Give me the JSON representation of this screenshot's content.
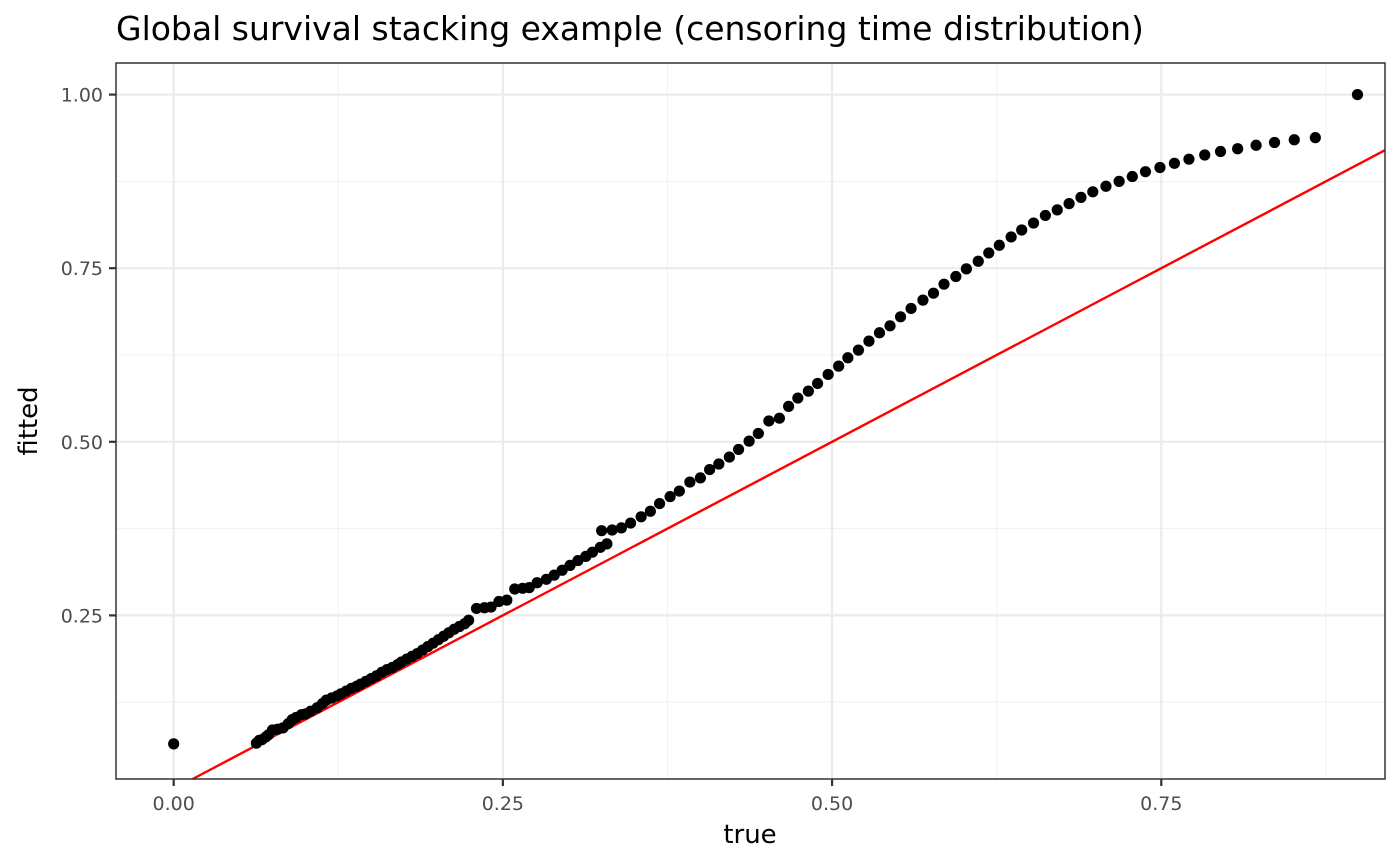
{
  "chart_data": {
    "type": "scatter",
    "title": "Global survival stacking example (censoring time distribution)",
    "xlabel": "true",
    "ylabel": "fitted",
    "xlim": [
      -0.0438,
      0.9199
    ],
    "ylim": [
      0.0144,
      1.0455
    ],
    "x_ticks": [
      0.0,
      0.25,
      0.5,
      0.75
    ],
    "x_tick_labels": [
      "0.00",
      "0.25",
      "0.50",
      "0.75"
    ],
    "y_ticks": [
      0.25,
      0.5,
      0.75,
      1.0
    ],
    "y_tick_labels": [
      "0.25",
      "0.50",
      "0.75",
      "1.00"
    ],
    "x_minor": [
      0.125,
      0.375,
      0.625,
      0.875
    ],
    "y_minor": [
      0.125,
      0.375,
      0.625,
      0.875
    ],
    "grid": true,
    "reference_line": {
      "intercept": 0,
      "slope": 1,
      "color": "#ff0000"
    },
    "point_color": "#000000",
    "points": [
      [
        0.0,
        0.065
      ],
      [
        0.0628,
        0.066
      ],
      [
        0.065,
        0.07
      ],
      [
        0.067,
        0.071
      ],
      [
        0.07,
        0.075
      ],
      [
        0.072,
        0.078
      ],
      [
        0.075,
        0.085
      ],
      [
        0.079,
        0.086
      ],
      [
        0.083,
        0.088
      ],
      [
        0.087,
        0.094
      ],
      [
        0.09,
        0.1
      ],
      [
        0.093,
        0.103
      ],
      [
        0.097,
        0.107
      ],
      [
        0.1,
        0.108
      ],
      [
        0.104,
        0.112
      ],
      [
        0.109,
        0.117
      ],
      [
        0.113,
        0.123
      ],
      [
        0.116,
        0.128
      ],
      [
        0.12,
        0.131
      ],
      [
        0.124,
        0.134
      ],
      [
        0.127,
        0.137
      ],
      [
        0.131,
        0.141
      ],
      [
        0.135,
        0.145
      ],
      [
        0.139,
        0.148
      ],
      [
        0.142,
        0.151
      ],
      [
        0.146,
        0.155
      ],
      [
        0.15,
        0.159
      ],
      [
        0.154,
        0.163
      ],
      [
        0.158,
        0.168
      ],
      [
        0.162,
        0.172
      ],
      [
        0.166,
        0.175
      ],
      [
        0.17,
        0.179
      ],
      [
        0.173,
        0.183
      ],
      [
        0.177,
        0.187
      ],
      [
        0.181,
        0.191
      ],
      [
        0.185,
        0.195
      ],
      [
        0.189,
        0.2
      ],
      [
        0.193,
        0.205
      ],
      [
        0.197,
        0.21
      ],
      [
        0.201,
        0.215
      ],
      [
        0.205,
        0.22
      ],
      [
        0.209,
        0.225
      ],
      [
        0.213,
        0.23
      ],
      [
        0.217,
        0.234
      ],
      [
        0.221,
        0.238
      ],
      [
        0.224,
        0.243
      ],
      [
        0.23,
        0.26
      ],
      [
        0.236,
        0.261
      ],
      [
        0.241,
        0.262
      ],
      [
        0.247,
        0.27
      ],
      [
        0.253,
        0.272
      ],
      [
        0.259,
        0.288
      ],
      [
        0.265,
        0.289
      ],
      [
        0.27,
        0.29
      ],
      [
        0.276,
        0.297
      ],
      [
        0.283,
        0.302
      ],
      [
        0.289,
        0.308
      ],
      [
        0.295,
        0.315
      ],
      [
        0.301,
        0.322
      ],
      [
        0.307,
        0.329
      ],
      [
        0.313,
        0.335
      ],
      [
        0.318,
        0.341
      ],
      [
        0.324,
        0.348
      ],
      [
        0.329,
        0.353
      ],
      [
        0.325,
        0.372
      ],
      [
        0.333,
        0.373
      ],
      [
        0.34,
        0.376
      ],
      [
        0.347,
        0.383
      ],
      [
        0.355,
        0.392
      ],
      [
        0.362,
        0.4
      ],
      [
        0.369,
        0.411
      ],
      [
        0.377,
        0.421
      ],
      [
        0.384,
        0.429
      ],
      [
        0.392,
        0.442
      ],
      [
        0.4,
        0.448
      ],
      [
        0.407,
        0.46
      ],
      [
        0.414,
        0.468
      ],
      [
        0.422,
        0.478
      ],
      [
        0.429,
        0.489
      ],
      [
        0.437,
        0.501
      ],
      [
        0.444,
        0.512
      ],
      [
        0.452,
        0.53
      ],
      [
        0.46,
        0.534
      ],
      [
        0.467,
        0.551
      ],
      [
        0.474,
        0.563
      ],
      [
        0.482,
        0.573
      ],
      [
        0.489,
        0.584
      ],
      [
        0.497,
        0.597
      ],
      [
        0.505,
        0.609
      ],
      [
        0.512,
        0.621
      ],
      [
        0.52,
        0.632
      ],
      [
        0.528,
        0.645
      ],
      [
        0.536,
        0.657
      ],
      [
        0.544,
        0.667
      ],
      [
        0.552,
        0.68
      ],
      [
        0.56,
        0.692
      ],
      [
        0.569,
        0.704
      ],
      [
        0.577,
        0.714
      ],
      [
        0.585,
        0.727
      ],
      [
        0.594,
        0.738
      ],
      [
        0.602,
        0.749
      ],
      [
        0.611,
        0.76
      ],
      [
        0.619,
        0.772
      ],
      [
        0.627,
        0.783
      ],
      [
        0.636,
        0.795
      ],
      [
        0.644,
        0.805
      ],
      [
        0.653,
        0.815
      ],
      [
        0.662,
        0.826
      ],
      [
        0.671,
        0.834
      ],
      [
        0.68,
        0.843
      ],
      [
        0.689,
        0.852
      ],
      [
        0.698,
        0.86
      ],
      [
        0.708,
        0.868
      ],
      [
        0.718,
        0.875
      ],
      [
        0.728,
        0.882
      ],
      [
        0.738,
        0.889
      ],
      [
        0.749,
        0.895
      ],
      [
        0.76,
        0.901
      ],
      [
        0.771,
        0.907
      ],
      [
        0.783,
        0.913
      ],
      [
        0.795,
        0.918
      ],
      [
        0.808,
        0.922
      ],
      [
        0.822,
        0.927
      ],
      [
        0.836,
        0.931
      ],
      [
        0.851,
        0.935
      ],
      [
        0.867,
        0.938
      ],
      [
        0.899,
        1.0
      ]
    ]
  }
}
